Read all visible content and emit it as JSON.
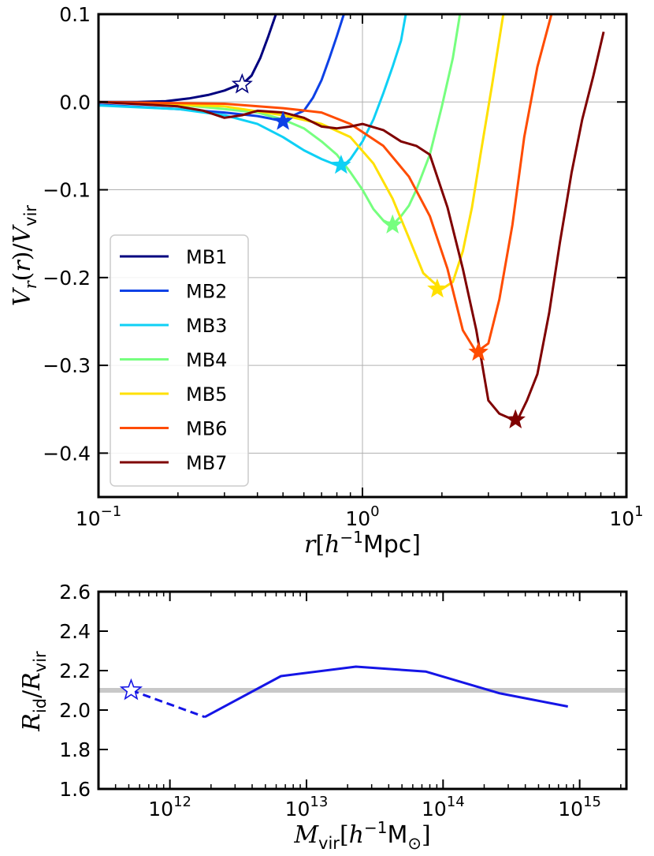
{
  "chart_data": [
    {
      "type": "line",
      "xscale": "log",
      "xlim": [
        0.1,
        10
      ],
      "ylim": [
        -0.45,
        0.1
      ],
      "xlabel": "r[h⁻¹Mpc]",
      "ylabel": "V_r(r)/V_vir",
      "xticks": [
        {
          "v": 0.1,
          "base": "10",
          "exp": "−1"
        },
        {
          "v": 1,
          "base": "10",
          "exp": "0"
        },
        {
          "v": 10,
          "base": "10",
          "exp": "1"
        }
      ],
      "yticks": [
        0.1,
        0.0,
        -0.1,
        -0.2,
        -0.3,
        -0.4
      ],
      "ytick_labels": [
        "0.1",
        "0.0",
        "−0.1",
        "−0.2",
        "−0.3",
        "−0.4"
      ],
      "grid": true,
      "legend": "center-left",
      "series": [
        {
          "name": "MB1",
          "color": "#00007f",
          "x": [
            0.1,
            0.14,
            0.18,
            0.22,
            0.26,
            0.3,
            0.33,
            0.35,
            0.38,
            0.41,
            0.44,
            0.47,
            0.5
          ],
          "y": [
            0.0,
            0.0,
            0.001,
            0.004,
            0.008,
            0.013,
            0.018,
            0.02,
            0.03,
            0.05,
            0.075,
            0.1,
            0.14
          ],
          "star": {
            "x": 0.35,
            "y": 0.02,
            "filled": false
          }
        },
        {
          "name": "MB2",
          "color": "#0d41e6",
          "x": [
            0.1,
            0.2,
            0.3,
            0.4,
            0.45,
            0.5,
            0.55,
            0.6,
            0.65,
            0.7,
            0.75,
            0.8,
            0.85,
            0.9
          ],
          "y": [
            -0.003,
            -0.008,
            -0.012,
            -0.016,
            -0.019,
            -0.022,
            -0.015,
            -0.01,
            0.005,
            0.025,
            0.05,
            0.075,
            0.1,
            0.13
          ],
          "star": {
            "x": 0.5,
            "y": -0.022,
            "filled": true
          }
        },
        {
          "name": "MB3",
          "color": "#0fd0f5",
          "x": [
            0.1,
            0.2,
            0.3,
            0.4,
            0.5,
            0.6,
            0.7,
            0.8,
            0.85,
            0.9,
            1.0,
            1.1,
            1.2,
            1.3,
            1.4,
            1.5
          ],
          "y": [
            -0.004,
            -0.008,
            -0.015,
            -0.025,
            -0.04,
            -0.055,
            -0.065,
            -0.072,
            -0.072,
            -0.065,
            -0.045,
            -0.02,
            0.01,
            0.04,
            0.07,
            0.12
          ],
          "star": {
            "x": 0.83,
            "y": -0.072,
            "filled": true
          }
        },
        {
          "name": "MB4",
          "color": "#76ff7f",
          "x": [
            0.1,
            0.2,
            0.3,
            0.4,
            0.5,
            0.6,
            0.7,
            0.8,
            0.9,
            1.0,
            1.1,
            1.2,
            1.3,
            1.4,
            1.5,
            1.6,
            1.8,
            2.0,
            2.2,
            2.4
          ],
          "y": [
            0.0,
            -0.003,
            -0.008,
            -0.012,
            -0.02,
            -0.03,
            -0.045,
            -0.06,
            -0.08,
            -0.1,
            -0.122,
            -0.135,
            -0.14,
            -0.13,
            -0.118,
            -0.1,
            -0.06,
            -0.005,
            0.05,
            0.12
          ],
          "star": {
            "x": 1.3,
            "y": -0.14,
            "filled": true
          }
        },
        {
          "name": "MB5",
          "color": "#ffe000",
          "x": [
            0.1,
            0.3,
            0.5,
            0.7,
            0.9,
            1.1,
            1.3,
            1.5,
            1.7,
            1.85,
            2.0,
            2.2,
            2.4,
            2.6,
            2.8,
            3.1,
            3.5
          ],
          "y": [
            0.0,
            -0.005,
            -0.015,
            -0.025,
            -0.04,
            -0.07,
            -0.11,
            -0.155,
            -0.195,
            -0.205,
            -0.213,
            -0.205,
            -0.17,
            -0.12,
            -0.06,
            0.02,
            0.12
          ],
          "star": {
            "x": 1.92,
            "y": -0.213,
            "filled": true
          }
        },
        {
          "name": "MB6",
          "color": "#ff4c00",
          "x": [
            0.1,
            0.3,
            0.5,
            0.7,
            0.9,
            1.2,
            1.5,
            1.8,
            2.1,
            2.4,
            2.7,
            3.0,
            3.3,
            3.7,
            4.1,
            4.6,
            5.2,
            5.8
          ],
          "y": [
            0.0,
            -0.002,
            -0.007,
            -0.012,
            -0.025,
            -0.05,
            -0.085,
            -0.13,
            -0.19,
            -0.26,
            -0.285,
            -0.275,
            -0.225,
            -0.14,
            -0.04,
            0.04,
            0.1,
            0.13
          ],
          "star": {
            "x": 2.75,
            "y": -0.285,
            "filled": true
          }
        },
        {
          "name": "MB7",
          "color": "#7f0000",
          "x": [
            0.1,
            0.2,
            0.25,
            0.3,
            0.35,
            0.4,
            0.5,
            0.6,
            0.7,
            0.8,
            0.9,
            1.0,
            1.2,
            1.4,
            1.6,
            1.8,
            2.1,
            2.4,
            2.7,
            3.0,
            3.3,
            3.6,
            3.9,
            4.2,
            4.6,
            5.1,
            5.6,
            6.2,
            6.8,
            7.5,
            8.2
          ],
          "y": [
            0.0,
            -0.005,
            -0.01,
            -0.018,
            -0.015,
            -0.01,
            -0.012,
            -0.018,
            -0.028,
            -0.03,
            -0.028,
            -0.025,
            -0.032,
            -0.045,
            -0.05,
            -0.06,
            -0.12,
            -0.19,
            -0.26,
            -0.34,
            -0.355,
            -0.36,
            -0.36,
            -0.34,
            -0.31,
            -0.24,
            -0.16,
            -0.08,
            -0.02,
            0.03,
            0.08
          ],
          "star": {
            "x": 3.8,
            "y": -0.362,
            "filled": true
          }
        }
      ]
    },
    {
      "type": "line",
      "xscale": "log",
      "xlim": [
        300000000000.0,
        2200000000000000.0
      ],
      "ylim": [
        1.6,
        2.6
      ],
      "xlabel": "M_vir[h⁻¹M⊙]",
      "ylabel": "R_id/R_vir",
      "xticks": [
        {
          "v": 1000000000000.0,
          "base": "10",
          "exp": "12"
        },
        {
          "v": 10000000000000.0,
          "base": "10",
          "exp": "13"
        },
        {
          "v": 100000000000000.0,
          "base": "10",
          "exp": "14"
        },
        {
          "v": 1000000000000000.0,
          "base": "10",
          "exp": "15"
        }
      ],
      "yticks": [
        1.6,
        1.8,
        2.0,
        2.2,
        2.4,
        2.6
      ],
      "ytick_labels": [
        "1.6",
        "1.8",
        "2.0",
        "2.2",
        "2.4",
        "2.6"
      ],
      "reference_line": {
        "y": 2.1,
        "color": "#c8c8c8"
      },
      "series": [
        {
          "color": "#1515e6",
          "dashed": {
            "x": [
              520000000000.0,
              1800000000000.0
            ],
            "y": [
              2.1,
              1.965
            ]
          },
          "solid": {
            "x": [
              1800000000000.0,
              6500000000000.0,
              23000000000000.0,
              75000000000000.0,
              260000000000000.0,
              820000000000000.0
            ],
            "y": [
              1.965,
              2.172,
              2.22,
              2.195,
              2.085,
              2.018
            ]
          },
          "star": {
            "x": 520000000000.0,
            "y": 2.1,
            "filled": false
          }
        }
      ]
    }
  ],
  "legend_labels": [
    "MB1",
    "MB2",
    "MB3",
    "MB4",
    "MB5",
    "MB6",
    "MB7"
  ]
}
